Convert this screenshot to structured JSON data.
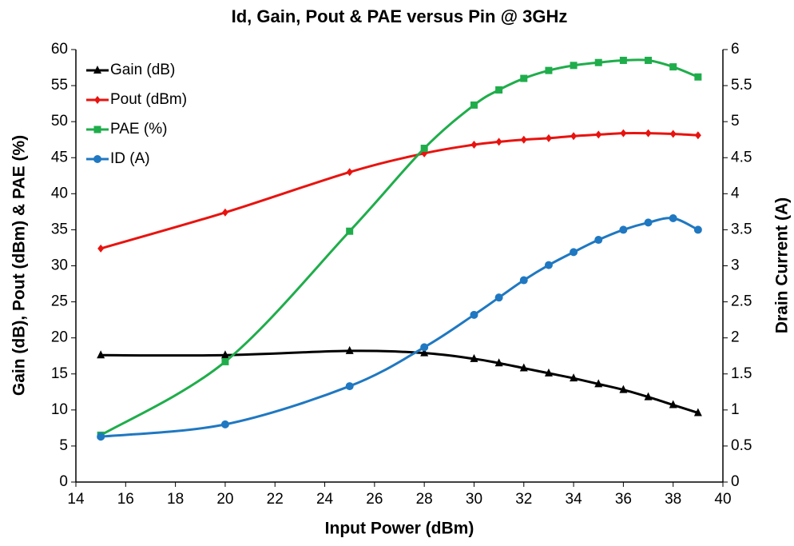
{
  "chart_data": {
    "type": "line",
    "title": "Id, Gain, Pout & PAE versus Pin @ 3GHz",
    "x_label": "Input Power (dBm)",
    "y_label": "Gain (dB), Pout (dBm) & PAE (%)",
    "y2_label": "Drain Current (A)",
    "x": [
      15,
      20,
      25,
      28,
      30,
      31,
      32,
      33,
      34,
      35,
      36,
      37,
      38,
      39
    ],
    "series": [
      {
        "name": "Gain (dB)",
        "color": "#000000",
        "marker": "triangle",
        "values": [
          17.6,
          17.6,
          18.2,
          17.9,
          17.1,
          16.5,
          15.8,
          15.1,
          14.4,
          13.6,
          12.8,
          11.8,
          10.7,
          9.6
        ]
      },
      {
        "name": "Pout (dBm)",
        "color": "#e8130f",
        "marker": "diamond",
        "values": [
          32.4,
          37.4,
          43.0,
          45.6,
          46.8,
          47.2,
          47.5,
          47.7,
          48.0,
          48.2,
          48.4,
          48.4,
          48.3,
          48.1
        ]
      },
      {
        "name": "PAE (%)",
        "color": "#1fad4b",
        "marker": "square",
        "values": [
          6.5,
          16.7,
          34.8,
          46.3,
          52.3,
          54.4,
          56.0,
          57.1,
          57.8,
          58.2,
          58.5,
          58.5,
          57.6,
          56.2
        ]
      },
      {
        "name": "ID (A)",
        "color": "#1f78c1",
        "marker": "circle",
        "axis": "y2",
        "values": [
          0.63,
          0.8,
          1.33,
          1.87,
          2.32,
          2.56,
          2.8,
          3.01,
          3.19,
          3.36,
          3.5,
          3.6,
          3.66,
          3.5
        ]
      }
    ],
    "xlim": [
      14,
      40
    ],
    "xticks": [
      14,
      16,
      18,
      20,
      22,
      24,
      26,
      28,
      30,
      32,
      34,
      36,
      38,
      40
    ],
    "ylim": [
      0,
      60
    ],
    "yticks": [
      0,
      5,
      10,
      15,
      20,
      25,
      30,
      35,
      40,
      45,
      50,
      55,
      60
    ],
    "y2lim": [
      0,
      6
    ],
    "y2ticks": [
      0,
      0.5,
      1,
      1.5,
      2,
      2.5,
      3,
      3.5,
      4,
      4.5,
      5,
      5.5,
      6
    ],
    "legend": "upper left",
    "grid": false
  }
}
